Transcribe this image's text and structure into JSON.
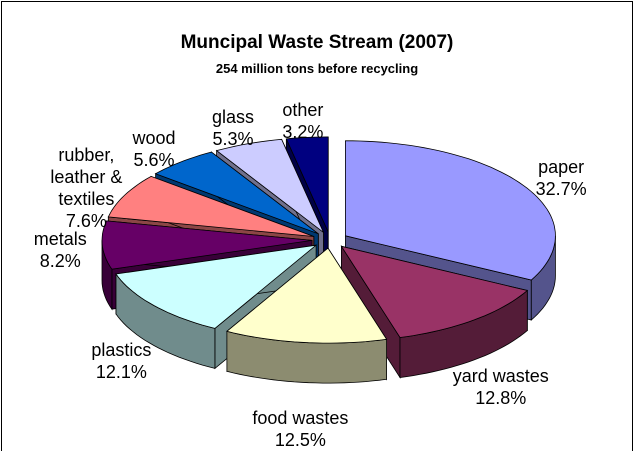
{
  "chart_data": {
    "type": "pie3d",
    "title": "Muncipal Waste Stream (2007)",
    "subtitle": "254 million tons before recycling",
    "categories": [
      "paper",
      "yard wastes",
      "food wastes",
      "plastics",
      "metals",
      "rubber, leather & textiles",
      "wood",
      "glass",
      "other"
    ],
    "values": [
      32.7,
      12.8,
      12.5,
      12.1,
      8.2,
      7.6,
      5.6,
      5.3,
      3.2
    ],
    "value_labels": [
      "32.7%",
      "12.8%",
      "12.5%",
      "12.1%",
      "8.2%",
      "7.6%",
      "5.6%",
      "5.3%",
      "3.2%"
    ],
    "colors": [
      "#9999ff",
      "#993366",
      "#ffffcc",
      "#ccffff",
      "#660066",
      "#ff8080",
      "#0066cc",
      "#ccccff",
      "#000080"
    ]
  }
}
